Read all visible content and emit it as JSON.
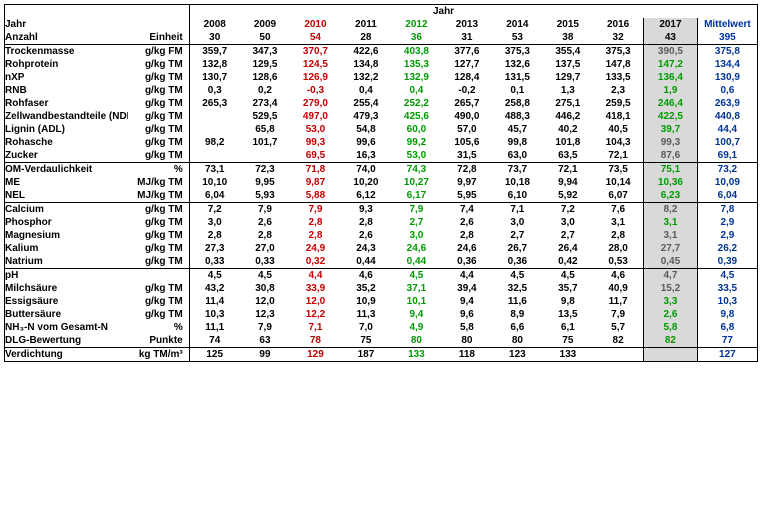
{
  "header": {
    "jahr_title": "Jahr",
    "jahr_label": "Jahr",
    "anzahl_label": "Anzahl",
    "einheit_label": "Einheit",
    "mittelwert": "Mittelwert",
    "years": [
      "2008",
      "2009",
      "2010",
      "2011",
      "2012",
      "2013",
      "2014",
      "2015",
      "2016",
      "2017"
    ],
    "counts": [
      "30",
      "50",
      "54",
      "28",
      "36",
      "31",
      "53",
      "38",
      "32",
      "43"
    ],
    "count_mw": "395",
    "year_colors": [
      "c-black",
      "c-black",
      "c-red",
      "c-black",
      "c-green",
      "c-black",
      "c-black",
      "c-black",
      "c-black",
      "c-black"
    ],
    "count_colors": [
      "c-black",
      "c-black",
      "c-red",
      "c-black",
      "c-green",
      "c-black",
      "c-black",
      "c-black",
      "c-black",
      "c-black"
    ]
  },
  "groups": [
    {
      "rows": [
        {
          "label": "Trockenmasse",
          "unit": "g/kg FM",
          "vals": [
            "359,7",
            "347,3",
            "370,7",
            "422,6",
            "403,8",
            "377,6",
            "375,3",
            "355,4",
            "375,3"
          ],
          "v2017": "390,5",
          "mw": "375,8",
          "colors": [
            "c-black",
            "c-black",
            "c-red",
            "c-black",
            "c-green",
            "c-black",
            "c-black",
            "c-black",
            "c-black"
          ],
          "c2017": "c-gray"
        },
        {
          "label": "Rohprotein",
          "unit": "g/kg TM",
          "vals": [
            "132,8",
            "129,5",
            "124,5",
            "134,8",
            "135,3",
            "127,7",
            "132,6",
            "137,5",
            "147,8"
          ],
          "v2017": "147,2",
          "mw": "134,4",
          "colors": [
            "c-black",
            "c-black",
            "c-red",
            "c-black",
            "c-green",
            "c-black",
            "c-black",
            "c-black",
            "c-black"
          ],
          "c2017": "c-green"
        },
        {
          "label": "nXP",
          "unit": "g/kg TM",
          "vals": [
            "130,7",
            "128,6",
            "126,9",
            "132,2",
            "132,9",
            "128,4",
            "131,5",
            "129,7",
            "133,5"
          ],
          "v2017": "136,4",
          "mw": "130,9",
          "colors": [
            "c-black",
            "c-black",
            "c-red",
            "c-black",
            "c-green",
            "c-black",
            "c-black",
            "c-black",
            "c-black"
          ],
          "c2017": "c-green"
        },
        {
          "label": "RNB",
          "unit": "g/kg TM",
          "vals": [
            "0,3",
            "0,2",
            "-0,3",
            "0,4",
            "0,4",
            "-0,2",
            "0,1",
            "1,3",
            "2,3"
          ],
          "v2017": "1,9",
          "mw": "0,6",
          "colors": [
            "c-black",
            "c-black",
            "c-red",
            "c-black",
            "c-green",
            "c-black",
            "c-black",
            "c-black",
            "c-black"
          ],
          "c2017": "c-green"
        },
        {
          "label": "Rohfaser",
          "unit": "g/kg TM",
          "vals": [
            "265,3",
            "273,4",
            "279,0",
            "255,4",
            "252,2",
            "265,7",
            "258,8",
            "275,1",
            "259,5"
          ],
          "v2017": "246,4",
          "mw": "263,9",
          "colors": [
            "c-black",
            "c-black",
            "c-red",
            "c-black",
            "c-green",
            "c-black",
            "c-black",
            "c-black",
            "c-black"
          ],
          "c2017": "c-green"
        },
        {
          "label": "Zellwandbestandteile (NDF)",
          "unit": "g/kg TM",
          "vals": [
            "",
            "529,5",
            "497,0",
            "479,3",
            "425,6",
            "490,0",
            "488,3",
            "446,2",
            "418,1"
          ],
          "v2017": "422,5",
          "mw": "440,8",
          "colors": [
            "c-black",
            "c-black",
            "c-red",
            "c-black",
            "c-green",
            "c-black",
            "c-black",
            "c-black",
            "c-black"
          ],
          "c2017": "c-green"
        },
        {
          "label": "Lignin (ADL)",
          "unit": "g/kg TM",
          "vals": [
            "",
            "65,8",
            "53,0",
            "54,8",
            "60,0",
            "57,0",
            "45,7",
            "40,2",
            "40,5"
          ],
          "v2017": "39,7",
          "mw": "44,4",
          "colors": [
            "c-black",
            "c-black",
            "c-red",
            "c-black",
            "c-green",
            "c-black",
            "c-black",
            "c-black",
            "c-black"
          ],
          "c2017": "c-green"
        },
        {
          "label": "Rohasche",
          "unit": "g/kg TM",
          "vals": [
            "98,2",
            "101,7",
            "99,3",
            "99,6",
            "99,2",
            "105,6",
            "99,8",
            "101,8",
            "104,3"
          ],
          "v2017": "99,3",
          "mw": "100,7",
          "colors": [
            "c-black",
            "c-black",
            "c-red",
            "c-black",
            "c-green",
            "c-black",
            "c-black",
            "c-black",
            "c-black"
          ],
          "c2017": "c-gray"
        },
        {
          "label": "Zucker",
          "unit": "g/kg TM",
          "vals": [
            "",
            "",
            "69,5",
            "16,3",
            "53,0",
            "31,5",
            "63,0",
            "63,5",
            "72,1"
          ],
          "v2017": "87,6",
          "mw": "69,1",
          "colors": [
            "c-black",
            "c-black",
            "c-red",
            "c-black",
            "c-green",
            "c-black",
            "c-black",
            "c-black",
            "c-black"
          ],
          "c2017": "c-gray"
        }
      ]
    },
    {
      "rows": [
        {
          "label": "OM-Verdaulichkeit",
          "unit": "%",
          "vals": [
            "73,1",
            "72,3",
            "71,8",
            "74,0",
            "74,3",
            "72,8",
            "73,7",
            "72,1",
            "73,5"
          ],
          "v2017": "75,1",
          "mw": "73,2",
          "colors": [
            "c-black",
            "c-black",
            "c-red",
            "c-black",
            "c-green",
            "c-black",
            "c-black",
            "c-black",
            "c-black"
          ],
          "c2017": "c-green"
        },
        {
          "label": "ME",
          "unit": "MJ/kg TM",
          "vals": [
            "10,10",
            "9,95",
            "9,87",
            "10,20",
            "10,27",
            "9,97",
            "10,18",
            "9,94",
            "10,14"
          ],
          "v2017": "10,36",
          "mw": "10,09",
          "colors": [
            "c-black",
            "c-black",
            "c-red",
            "c-black",
            "c-green",
            "c-black",
            "c-black",
            "c-black",
            "c-black"
          ],
          "c2017": "c-green"
        },
        {
          "label": "NEL",
          "unit": "MJ/kg TM",
          "vals": [
            "6,04",
            "5,93",
            "5,88",
            "6,12",
            "6,17",
            "5,95",
            "6,10",
            "5,92",
            "6,07"
          ],
          "v2017": "6,23",
          "mw": "6,04",
          "colors": [
            "c-black",
            "c-black",
            "c-red",
            "c-black",
            "c-green",
            "c-black",
            "c-black",
            "c-black",
            "c-black"
          ],
          "c2017": "c-green"
        }
      ]
    },
    {
      "rows": [
        {
          "label": "Calcium",
          "unit": "g/kg TM",
          "vals": [
            "7,2",
            "7,9",
            "7,9",
            "9,3",
            "7,9",
            "7,4",
            "7,1",
            "7,2",
            "7,6"
          ],
          "v2017": "8,2",
          "mw": "7,8",
          "colors": [
            "c-black",
            "c-black",
            "c-red",
            "c-black",
            "c-green",
            "c-black",
            "c-black",
            "c-black",
            "c-black"
          ],
          "c2017": "c-gray"
        },
        {
          "label": "Phosphor",
          "unit": "g/kg TM",
          "vals": [
            "3,0",
            "2,6",
            "2,8",
            "2,8",
            "2,7",
            "2,6",
            "3,0",
            "3,0",
            "3,1"
          ],
          "v2017": "3,1",
          "mw": "2,9",
          "colors": [
            "c-black",
            "c-black",
            "c-red",
            "c-black",
            "c-green",
            "c-black",
            "c-black",
            "c-black",
            "c-black"
          ],
          "c2017": "c-green"
        },
        {
          "label": "Magnesium",
          "unit": "g/kg TM",
          "vals": [
            "2,8",
            "2,8",
            "2,8",
            "2,6",
            "3,0",
            "2,8",
            "2,7",
            "2,7",
            "2,8"
          ],
          "v2017": "3,1",
          "mw": "2,9",
          "colors": [
            "c-black",
            "c-black",
            "c-red",
            "c-black",
            "c-green",
            "c-black",
            "c-black",
            "c-black",
            "c-black"
          ],
          "c2017": "c-gray"
        },
        {
          "label": "Kalium",
          "unit": "g/kg TM",
          "vals": [
            "27,3",
            "27,0",
            "24,9",
            "24,3",
            "24,6",
            "24,6",
            "26,7",
            "26,4",
            "28,0"
          ],
          "v2017": "27,7",
          "mw": "26,2",
          "colors": [
            "c-black",
            "c-black",
            "c-red",
            "c-black",
            "c-green",
            "c-black",
            "c-black",
            "c-black",
            "c-black"
          ],
          "c2017": "c-gray"
        },
        {
          "label": "Natrium",
          "unit": "g/kg TM",
          "vals": [
            "0,33",
            "0,33",
            "0,32",
            "0,44",
            "0,44",
            "0,36",
            "0,36",
            "0,42",
            "0,53"
          ],
          "v2017": "0,45",
          "mw": "0,39",
          "colors": [
            "c-black",
            "c-black",
            "c-red",
            "c-black",
            "c-green",
            "c-black",
            "c-black",
            "c-black",
            "c-black"
          ],
          "c2017": "c-gray"
        }
      ]
    },
    {
      "rows": [
        {
          "label": "pH",
          "unit": "",
          "vals": [
            "4,5",
            "4,5",
            "4,4",
            "4,6",
            "4,5",
            "4,4",
            "4,5",
            "4,5",
            "4,6"
          ],
          "v2017": "4,7",
          "mw": "4,5",
          "colors": [
            "c-black",
            "c-black",
            "c-red",
            "c-black",
            "c-green",
            "c-black",
            "c-black",
            "c-black",
            "c-black"
          ],
          "c2017": "c-gray"
        },
        {
          "label": "Milchsäure",
          "unit": "g/kg TM",
          "vals": [
            "43,2",
            "30,8",
            "33,9",
            "35,2",
            "37,1",
            "39,4",
            "32,5",
            "35,7",
            "40,9"
          ],
          "v2017": "15,2",
          "mw": "33,5",
          "colors": [
            "c-black",
            "c-black",
            "c-red",
            "c-black",
            "c-green",
            "c-black",
            "c-black",
            "c-black",
            "c-black"
          ],
          "c2017": "c-gray"
        },
        {
          "label": "Essigsäure",
          "unit": "g/kg TM",
          "vals": [
            "11,4",
            "12,0",
            "12,0",
            "10,9",
            "10,1",
            "9,4",
            "11,6",
            "9,8",
            "11,7"
          ],
          "v2017": "3,3",
          "mw": "10,3",
          "colors": [
            "c-black",
            "c-black",
            "c-red",
            "c-black",
            "c-green",
            "c-black",
            "c-black",
            "c-black",
            "c-black"
          ],
          "c2017": "c-green"
        },
        {
          "label": "Buttersäure",
          "unit": "g/kg TM",
          "vals": [
            "10,3",
            "12,3",
            "12,2",
            "11,3",
            "9,4",
            "9,6",
            "8,9",
            "13,5",
            "7,9"
          ],
          "v2017": "2,6",
          "mw": "9,8",
          "colors": [
            "c-black",
            "c-black",
            "c-red",
            "c-black",
            "c-green",
            "c-black",
            "c-black",
            "c-black",
            "c-black"
          ],
          "c2017": "c-green"
        },
        {
          "label": "NH₃-N vom Gesamt-N",
          "unit": "%",
          "vals": [
            "11,1",
            "7,9",
            "7,1",
            "7,0",
            "4,9",
            "5,8",
            "6,6",
            "6,1",
            "5,7"
          ],
          "v2017": "5,8",
          "mw": "6,8",
          "colors": [
            "c-black",
            "c-black",
            "c-red",
            "c-black",
            "c-green",
            "c-black",
            "c-black",
            "c-black",
            "c-black"
          ],
          "c2017": "c-green"
        },
        {
          "label": "DLG-Bewertung",
          "unit": "Punkte",
          "vals": [
            "74",
            "63",
            "78",
            "75",
            "80",
            "80",
            "80",
            "75",
            "82"
          ],
          "v2017": "82",
          "mw": "77",
          "colors": [
            "c-black",
            "c-black",
            "c-red",
            "c-black",
            "c-green",
            "c-black",
            "c-black",
            "c-black",
            "c-black"
          ],
          "c2017": "c-green"
        }
      ]
    },
    {
      "rows": [
        {
          "label": "Verdichtung",
          "unit": "kg TM/m³",
          "vals": [
            "125",
            "99",
            "129",
            "187",
            "133",
            "118",
            "123",
            "133",
            ""
          ],
          "v2017": "",
          "mw": "127",
          "colors": [
            "c-black",
            "c-black",
            "c-red",
            "c-black",
            "c-green",
            "c-black",
            "c-black",
            "c-black",
            "c-black"
          ],
          "c2017": "c-gray"
        }
      ]
    }
  ]
}
